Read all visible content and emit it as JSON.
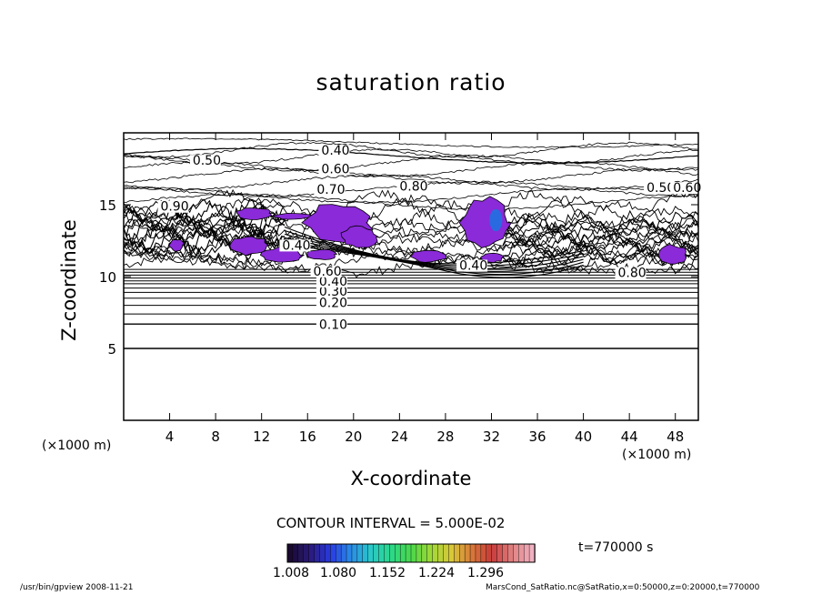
{
  "chart_data": {
    "type": "contour",
    "title": "saturation ratio",
    "xlabel": "X-coordinate",
    "ylabel": "Z-coordinate",
    "x_unit": "(×1000 m)",
    "xlim": [
      0,
      50
    ],
    "ylim": [
      0,
      20
    ],
    "x_ticks": [
      4,
      8,
      12,
      16,
      20,
      24,
      28,
      32,
      36,
      40,
      44,
      48
    ],
    "y_ticks": [
      5,
      10,
      15
    ],
    "contour_interval": "CONTOUR INTERVAL = 5.000E-02",
    "contour_labels": [
      {
        "x": 17.0,
        "y": 6.5,
        "text": "0.10"
      },
      {
        "x": 17.0,
        "y": 8.0,
        "text": "0.20"
      },
      {
        "x": 17.0,
        "y": 8.8,
        "text": "0.30"
      },
      {
        "x": 17.0,
        "y": 9.5,
        "text": "0.40"
      },
      {
        "x": 16.5,
        "y": 10.2,
        "text": "0.60"
      },
      {
        "x": 17.2,
        "y": 18.6,
        "text": "0.40"
      },
      {
        "x": 6.0,
        "y": 17.9,
        "text": "0.50"
      },
      {
        "x": 17.2,
        "y": 17.3,
        "text": "0.60"
      },
      {
        "x": 16.8,
        "y": 15.9,
        "text": "0.70"
      },
      {
        "x": 24.0,
        "y": 16.1,
        "text": "0.80"
      },
      {
        "x": 3.2,
        "y": 14.7,
        "text": "0.90"
      },
      {
        "x": 45.5,
        "y": 16.0,
        "text": "0.50"
      },
      {
        "x": 47.8,
        "y": 16.0,
        "text": "0.60"
      },
      {
        "x": 29.2,
        "y": 10.6,
        "text": "0.40"
      },
      {
        "x": 43.0,
        "y": 10.1,
        "text": "0.80"
      },
      {
        "x": 13.8,
        "y": 12.0,
        "text": "0.40"
      }
    ],
    "colorbar": {
      "ticks": [
        "1.008",
        "1.080",
        "1.152",
        "1.224",
        "1.296"
      ],
      "range": [
        1.008,
        1.332
      ],
      "colors": [
        "#1a0a30",
        "#2a1a7a",
        "#2a3ae0",
        "#2a8ae8",
        "#2ac8c8",
        "#2ad88a",
        "#4ad84a",
        "#a0d838",
        "#d8c838",
        "#d87a3a",
        "#c83a3a",
        "#e08080",
        "#f0b0c0"
      ]
    },
    "supersaturated_regions": [
      {
        "x": [
          9.8,
          12.8
        ],
        "z": [
          14.0,
          14.8
        ]
      },
      {
        "x": [
          13.0,
          16.2
        ],
        "z": [
          14.0,
          14.4
        ]
      },
      {
        "x": [
          15.8,
          21.5
        ],
        "z": [
          12.5,
          15.0
        ]
      },
      {
        "x": [
          19.0,
          22.0
        ],
        "z": [
          12.0,
          13.5
        ]
      },
      {
        "x": [
          9.3,
          12.5
        ],
        "z": [
          11.5,
          12.8
        ]
      },
      {
        "x": [
          12.0,
          15.5
        ],
        "z": [
          11.0,
          12.0
        ]
      },
      {
        "x": [
          16.0,
          18.5
        ],
        "z": [
          11.2,
          11.9
        ]
      },
      {
        "x": [
          29.5,
          33.5
        ],
        "z": [
          12.0,
          15.5
        ]
      },
      {
        "x": [
          25.0,
          28.0
        ],
        "z": [
          11.0,
          11.8
        ]
      },
      {
        "x": [
          31.0,
          33.0
        ],
        "z": [
          11.0,
          11.6
        ]
      },
      {
        "x": [
          46.5,
          49.0
        ],
        "z": [
          10.8,
          12.2
        ]
      },
      {
        "x": [
          4.0,
          5.2
        ],
        "z": [
          11.8,
          12.6
        ]
      }
    ],
    "time": "t=770000 s"
  },
  "footer": {
    "left": "/usr/bin/gpview   2008-11-21",
    "right": "MarsCond_SatRatio.nc@SatRatio,x=0:50000,z=0:20000,t=770000"
  }
}
